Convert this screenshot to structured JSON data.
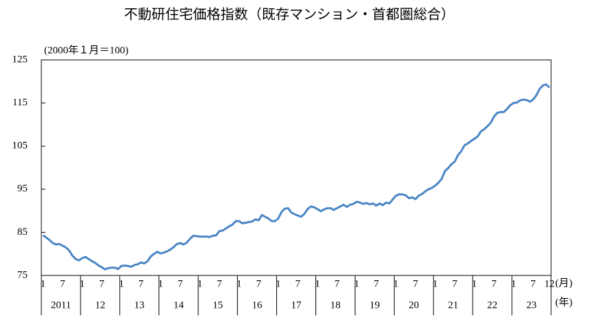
{
  "chart_data": {
    "type": "line",
    "title": "不動研住宅価格指数（既存マンション・首都圏総合）",
    "subtitle": "(2000年１月＝100)",
    "x_unit_month": "(月)",
    "x_unit_year": "(年)",
    "years": [
      "2011",
      "12",
      "13",
      "14",
      "15",
      "16",
      "17",
      "18",
      "19",
      "20",
      "21",
      "22",
      "23"
    ],
    "categories": [
      "1",
      null,
      null,
      null,
      null,
      null,
      "7",
      null,
      null,
      null,
      null,
      null,
      "1",
      null,
      null,
      null,
      null,
      null,
      "7",
      null,
      null,
      null,
      null,
      null,
      "1",
      null,
      null,
      null,
      null,
      null,
      "7",
      null,
      null,
      null,
      null,
      null,
      "1",
      null,
      null,
      null,
      null,
      null,
      "7",
      null,
      null,
      null,
      null,
      null,
      "1",
      null,
      null,
      null,
      null,
      null,
      "7",
      null,
      null,
      null,
      null,
      null,
      "1",
      null,
      null,
      null,
      null,
      null,
      "7",
      null,
      null,
      null,
      null,
      null,
      "1",
      null,
      null,
      null,
      null,
      null,
      "7",
      null,
      null,
      null,
      null,
      null,
      "1",
      null,
      null,
      null,
      null,
      null,
      "7",
      null,
      null,
      null,
      null,
      null,
      "1",
      null,
      null,
      null,
      null,
      null,
      "7",
      null,
      null,
      null,
      null,
      null,
      "1",
      null,
      null,
      null,
      null,
      null,
      "7",
      null,
      null,
      null,
      null,
      null,
      "1",
      null,
      null,
      null,
      null,
      null,
      "7",
      null,
      null,
      null,
      null,
      null,
      "1",
      null,
      null,
      null,
      null,
      null,
      "7",
      null,
      null,
      null,
      null,
      null,
      "1",
      null,
      null,
      null,
      null,
      null,
      "7",
      null,
      null,
      null,
      null,
      "12"
    ],
    "series": [
      {
        "color": "#4a86c5",
        "values": [
          84.3,
          83.8,
          83.2,
          82.5,
          82.2,
          82.3,
          81.9,
          81.5,
          80.8,
          79.6,
          78.8,
          78.5,
          79.0,
          79.3,
          78.8,
          78.3,
          77.9,
          77.3,
          76.9,
          76.4,
          76.7,
          76.8,
          76.8,
          76.5,
          77.2,
          77.3,
          77.2,
          77.0,
          77.4,
          77.6,
          78.0,
          77.8,
          78.3,
          79.4,
          80.0,
          80.5,
          80.1,
          80.3,
          80.6,
          81.0,
          81.6,
          82.3,
          82.5,
          82.2,
          82.6,
          83.5,
          84.2,
          84.1,
          84.0,
          84.0,
          84.0,
          83.9,
          84.2,
          84.3,
          85.3,
          85.4,
          85.9,
          86.4,
          86.8,
          87.6,
          87.6,
          87.1,
          87.2,
          87.4,
          87.5,
          88.0,
          87.8,
          89.0,
          88.6,
          88.2,
          87.6,
          87.6,
          88.2,
          89.7,
          90.5,
          90.6,
          89.6,
          89.2,
          88.9,
          88.6,
          89.3,
          90.4,
          91.0,
          90.8,
          90.4,
          89.9,
          90.3,
          90.6,
          90.6,
          90.2,
          90.6,
          91.0,
          91.4,
          90.9,
          91.4,
          91.6,
          92.1,
          91.9,
          91.6,
          91.8,
          91.5,
          91.7,
          91.2,
          91.7,
          91.3,
          91.9,
          91.7,
          92.6,
          93.5,
          93.8,
          93.8,
          93.6,
          92.9,
          93.1,
          92.7,
          93.5,
          93.9,
          94.5,
          95.0,
          95.3,
          95.8,
          96.5,
          97.4,
          99.2,
          99.9,
          100.8,
          101.4,
          102.9,
          103.8,
          105.2,
          105.6,
          106.2,
          106.7,
          107.2,
          108.4,
          108.9,
          109.6,
          110.4,
          111.8,
          112.7,
          112.9,
          112.9,
          113.6,
          114.5,
          115.0,
          115.1,
          115.6,
          115.8,
          115.7,
          115.3,
          115.8,
          116.8,
          118.3,
          119.1,
          119.3,
          118.6
        ]
      }
    ],
    "ylim": [
      75,
      125
    ],
    "yticks": [
      75,
      85,
      95,
      105,
      115,
      125
    ]
  }
}
